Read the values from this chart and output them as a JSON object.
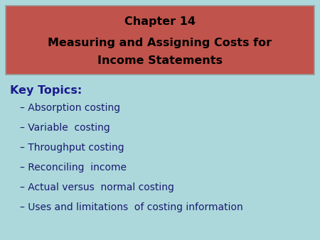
{
  "background_color": "#acd8dc",
  "title_box_color": "#c0534b",
  "title_line1": "Chapter 14",
  "title_line2": "Measuring and Assigning Costs for",
  "title_line3": "Income Statements",
  "title_text_color": "#000000",
  "key_topics_label": "Key Topics:",
  "key_topics_color": "#1a1a8c",
  "bullet_items": [
    "– Absorption costing",
    "– Variable  costing",
    "– Throughput costing",
    "– Reconciling  income",
    "– Actual versus  normal costing",
    "– Uses and limitations  of costing information"
  ],
  "bullet_color": "#1a1a6e",
  "title_fontsize": 11.5,
  "key_topics_fontsize": 11.5,
  "bullet_fontsize": 10.0,
  "fig_width": 4.5,
  "fig_height": 3.38,
  "dpi": 100
}
